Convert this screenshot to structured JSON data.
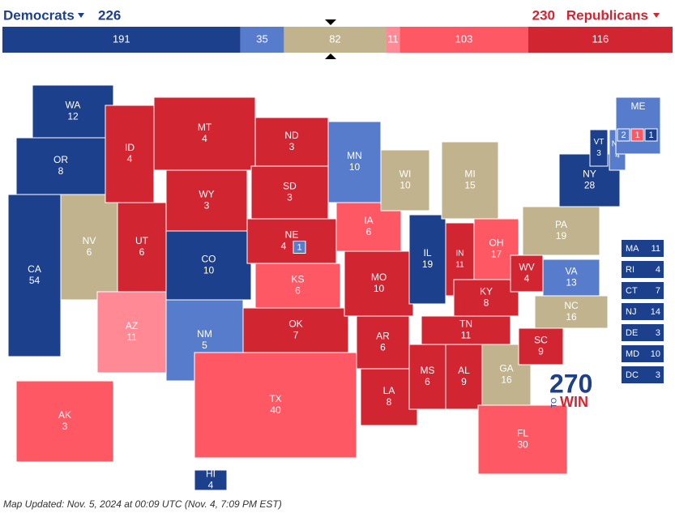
{
  "header": {
    "left_party": "Democrats",
    "left_total": 226,
    "right_total": 230,
    "right_party": "Republicans"
  },
  "bar": {
    "segments": [
      {
        "value": 191,
        "color": "#1c408c"
      },
      {
        "value": 35,
        "color": "#577ccc"
      },
      {
        "value": 82,
        "color": "#c2b38f"
      },
      {
        "value": 11,
        "color": "#ff8a95"
      },
      {
        "value": 103,
        "color": "#ff5865"
      },
      {
        "value": 116,
        "color": "#d22532"
      }
    ]
  },
  "states": [
    {
      "abbr": "WA",
      "ev": 12,
      "color": "#1c408c"
    },
    {
      "abbr": "OR",
      "ev": 8,
      "color": "#1c408c"
    },
    {
      "abbr": "CA",
      "ev": 54,
      "color": "#1c408c"
    },
    {
      "abbr": "NV",
      "ev": 6,
      "color": "#c2b38f"
    },
    {
      "abbr": "ID",
      "ev": 4,
      "color": "#d22532"
    },
    {
      "abbr": "MT",
      "ev": 4,
      "color": "#d22532"
    },
    {
      "abbr": "WY",
      "ev": 3,
      "color": "#d22532"
    },
    {
      "abbr": "UT",
      "ev": 6,
      "color": "#d22532"
    },
    {
      "abbr": "AZ",
      "ev": 11,
      "color": "#ff8a95"
    },
    {
      "abbr": "CO",
      "ev": 10,
      "color": "#1c408c"
    },
    {
      "abbr": "NM",
      "ev": 5,
      "color": "#577ccc"
    },
    {
      "abbr": "ND",
      "ev": 3,
      "color": "#d22532"
    },
    {
      "abbr": "SD",
      "ev": 3,
      "color": "#d22532"
    },
    {
      "abbr": "NE",
      "ev": 4,
      "color": "#d22532",
      "splits": [
        {
          "value": 1,
          "color": "#577ccc"
        }
      ]
    },
    {
      "abbr": "KS",
      "ev": 6,
      "color": "#ff5865"
    },
    {
      "abbr": "OK",
      "ev": 7,
      "color": "#d22532"
    },
    {
      "abbr": "TX",
      "ev": 40,
      "color": "#ff5865"
    },
    {
      "abbr": "MN",
      "ev": 10,
      "color": "#577ccc"
    },
    {
      "abbr": "IA",
      "ev": 6,
      "color": "#ff5865"
    },
    {
      "abbr": "MO",
      "ev": 10,
      "color": "#d22532"
    },
    {
      "abbr": "AR",
      "ev": 6,
      "color": "#d22532"
    },
    {
      "abbr": "LA",
      "ev": 8,
      "color": "#d22532"
    },
    {
      "abbr": "WI",
      "ev": 10,
      "color": "#c2b38f"
    },
    {
      "abbr": "IL",
      "ev": 19,
      "color": "#1c408c"
    },
    {
      "abbr": "MS",
      "ev": 6,
      "color": "#d22532"
    },
    {
      "abbr": "MI",
      "ev": 15,
      "color": "#c2b38f"
    },
    {
      "abbr": "IN",
      "ev": 11,
      "color": "#d22532"
    },
    {
      "abbr": "KY",
      "ev": 8,
      "color": "#d22532"
    },
    {
      "abbr": "TN",
      "ev": 11,
      "color": "#d22532"
    },
    {
      "abbr": "AL",
      "ev": 9,
      "color": "#d22532"
    },
    {
      "abbr": "OH",
      "ev": 17,
      "color": "#ff5865"
    },
    {
      "abbr": "WV",
      "ev": 4,
      "color": "#d22532"
    },
    {
      "abbr": "GA",
      "ev": 16,
      "color": "#c2b38f"
    },
    {
      "abbr": "FL",
      "ev": 30,
      "color": "#ff5865"
    },
    {
      "abbr": "SC",
      "ev": 9,
      "color": "#d22532"
    },
    {
      "abbr": "NC",
      "ev": 16,
      "color": "#c2b38f"
    },
    {
      "abbr": "VA",
      "ev": 13,
      "color": "#577ccc"
    },
    {
      "abbr": "PA",
      "ev": 19,
      "color": "#c2b38f"
    },
    {
      "abbr": "NY",
      "ev": 28,
      "color": "#1c408c"
    },
    {
      "abbr": "VT",
      "ev": 3,
      "color": "#1c408c"
    },
    {
      "abbr": "NH",
      "ev": 4,
      "color": "#577ccc"
    },
    {
      "abbr": "ME",
      "color": "#577ccc",
      "splits": [
        {
          "value": 2,
          "color": "#577ccc"
        },
        {
          "value": 1,
          "color": "#ff5865"
        },
        {
          "value": 1,
          "color": "#1c408c"
        }
      ]
    },
    {
      "abbr": "AK",
      "ev": 3,
      "color": "#ff5865"
    },
    {
      "abbr": "HI",
      "ev": 4,
      "color": "#1c408c"
    }
  ],
  "small_states": [
    {
      "abbr": "MA",
      "ev": 11,
      "color": "#1c408c"
    },
    {
      "abbr": "RI",
      "ev": 4,
      "color": "#1c408c"
    },
    {
      "abbr": "CT",
      "ev": 7,
      "color": "#1c408c"
    },
    {
      "abbr": "NJ",
      "ev": 14,
      "color": "#1c408c"
    },
    {
      "abbr": "DE",
      "ev": 3,
      "color": "#1c408c"
    },
    {
      "abbr": "MD",
      "ev": 10,
      "color": "#1c408c"
    },
    {
      "abbr": "DC",
      "ev": 3,
      "color": "#1c408c"
    }
  ],
  "logo": {
    "number": "270",
    "to": "TO",
    "win": "WIN"
  },
  "footer": "Map Updated: Nov. 5, 2024 at 00:09 UTC (Nov. 4, 7:09 PM EST)"
}
